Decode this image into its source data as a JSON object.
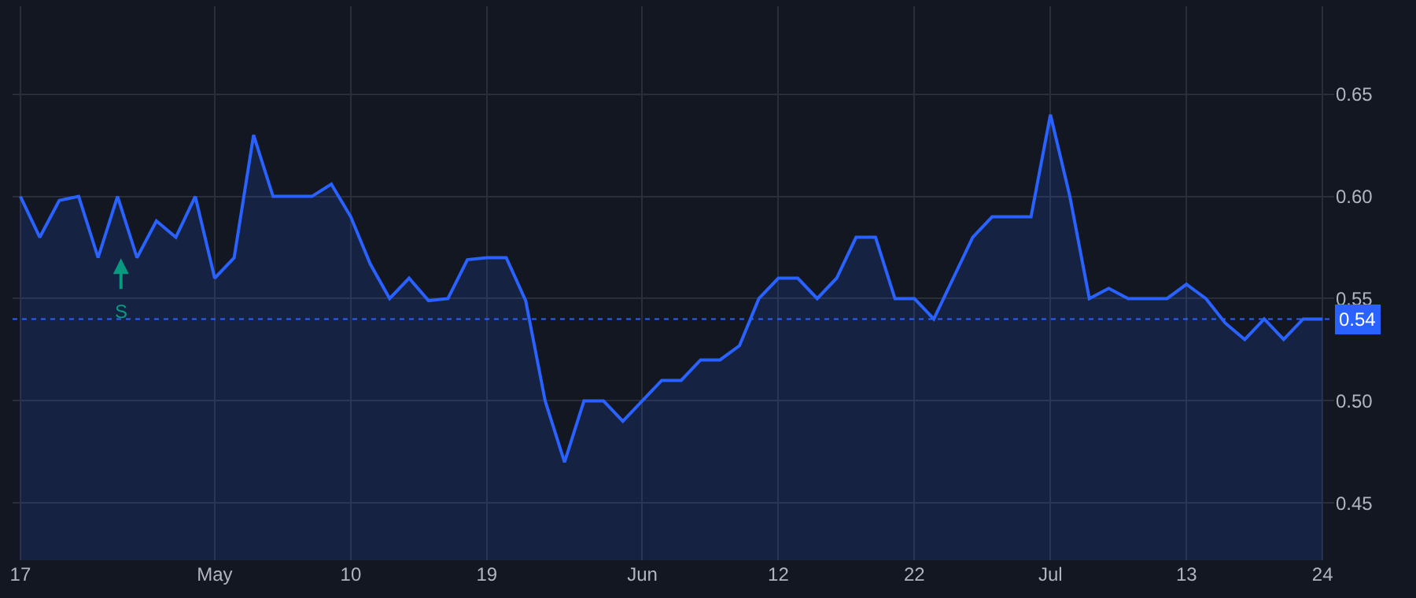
{
  "chart_data": {
    "type": "area",
    "categories": [
      "17",
      null,
      null,
      null,
      null,
      null,
      null,
      null,
      null,
      null,
      "May",
      null,
      null,
      null,
      null,
      null,
      null,
      "10",
      null,
      null,
      null,
      null,
      null,
      null,
      "19",
      null,
      null,
      null,
      null,
      null,
      null,
      null,
      "Jun",
      null,
      null,
      null,
      null,
      null,
      null,
      "12",
      null,
      null,
      null,
      null,
      null,
      null,
      "22",
      null,
      null,
      null,
      null,
      null,
      null,
      "Jul",
      null,
      null,
      null,
      null,
      null,
      null,
      "13",
      null,
      null,
      null,
      null,
      null,
      null,
      "24"
    ],
    "series": [
      {
        "color": "#2962ff",
        "values": [
          0.6,
          0.58,
          0.598,
          0.6,
          0.57,
          0.6,
          0.57,
          0.588,
          0.58,
          0.6,
          0.56,
          0.57,
          0.63,
          0.6,
          0.6,
          0.6,
          0.606,
          0.59,
          0.567,
          0.55,
          0.56,
          0.549,
          0.55,
          0.569,
          0.57,
          0.57,
          0.549,
          0.5,
          0.47,
          0.5,
          0.5,
          0.49,
          0.5,
          0.51,
          0.51,
          0.52,
          0.52,
          0.527,
          0.55,
          0.56,
          0.56,
          0.55,
          0.56,
          0.58,
          0.58,
          0.55,
          0.55,
          0.54,
          0.56,
          0.58,
          0.59,
          0.59,
          0.59,
          0.64,
          0.6,
          0.55,
          0.555,
          0.55,
          0.55,
          0.55,
          0.557,
          0.55,
          0.538,
          0.53,
          0.54,
          0.53,
          0.54,
          0.54
        ]
      }
    ],
    "ylim": [
      0.422,
      0.693
    ],
    "yticks": [
      {
        "value": 0.45,
        "label": "0.45"
      },
      {
        "value": 0.5,
        "label": "0.50"
      },
      {
        "value": 0.55,
        "label": "0.55"
      },
      {
        "value": 0.6,
        "label": "0.60"
      },
      {
        "value": 0.65,
        "label": "0.65"
      }
    ],
    "ref_lines": [
      {
        "axis": "y",
        "value": 0.54,
        "label": "0.54",
        "color": "#2962ff",
        "line_style": "dotted"
      }
    ],
    "annotations": [
      "S"
    ],
    "grid": true,
    "marker": "none",
    "line_style": "solid"
  }
}
